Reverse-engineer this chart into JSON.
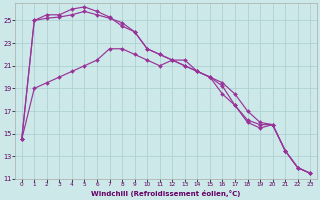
{
  "xlabel": "Windchill (Refroidissement éolien,°C)",
  "xlim": [
    -0.5,
    23.5
  ],
  "ylim": [
    11,
    26.5
  ],
  "xticks": [
    0,
    1,
    2,
    3,
    4,
    5,
    6,
    7,
    8,
    9,
    10,
    11,
    12,
    13,
    14,
    15,
    16,
    17,
    18,
    19,
    20,
    21,
    22,
    23
  ],
  "yticks": [
    11,
    13,
    15,
    17,
    19,
    21,
    23,
    25
  ],
  "bg_color": "#cce8e8",
  "grid_color": "#aacece",
  "line_color": "#993399",
  "curves": [
    [
      14.5,
      25.0,
      25.5,
      25.5,
      26.0,
      26.2,
      25.8,
      25.3,
      24.5,
      24.0,
      22.5,
      22.0,
      21.5,
      21.0,
      20.5,
      20.0,
      19.5,
      18.5,
      17.0,
      16.0,
      15.8,
      13.5,
      12.0,
      11.5
    ],
    [
      14.5,
      25.0,
      25.2,
      25.3,
      25.5,
      25.8,
      25.5,
      25.2,
      24.8,
      24.0,
      22.5,
      22.0,
      21.5,
      21.0,
      20.5,
      20.0,
      19.2,
      17.5,
      16.0,
      15.5,
      15.8,
      13.5,
      12.0,
      11.5
    ],
    [
      14.5,
      19.0,
      19.5,
      20.0,
      20.5,
      21.0,
      21.5,
      22.5,
      22.5,
      22.0,
      21.5,
      21.0,
      21.5,
      21.5,
      20.5,
      20.0,
      18.5,
      17.5,
      16.2,
      15.8,
      15.8,
      13.5,
      12.0,
      11.5
    ]
  ]
}
